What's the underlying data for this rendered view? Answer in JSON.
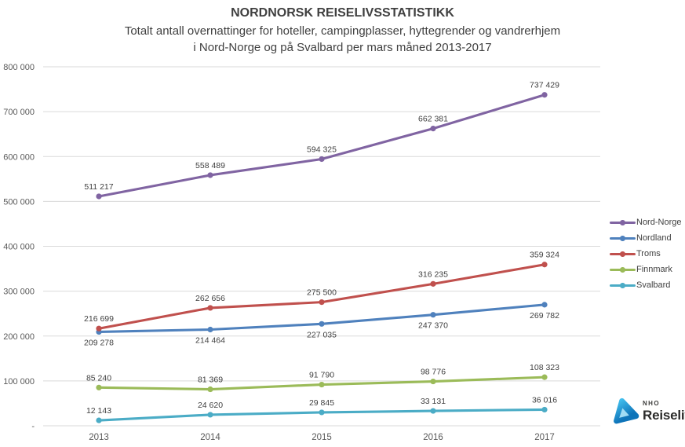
{
  "header": {
    "title": "NORDNORSK REISELIVSSTATISTIKK",
    "subtitle_line1": "Totalt antall overnattinger for hoteller, campingplasser, hyttegrender og vandrerhjem",
    "subtitle_line2": "i Nord-Norge og på Svalbard per mars måned 2013-2017"
  },
  "chart_data": {
    "type": "line",
    "title": "NORDNORSK REISELIVSSTATISTIKK",
    "subtitle": "Totalt antall overnattinger for hoteller, campingplasser, hyttegrender og vandrerhjem i Nord-Norge og på Svalbard per mars måned 2013-2017",
    "categories": [
      "2013",
      "2014",
      "2015",
      "2016",
      "2017"
    ],
    "series": [
      {
        "name": "Nord-Norge",
        "color": "#8064A2",
        "label_position": "above",
        "values": [
          511217,
          558489,
          594325,
          662381,
          737429
        ]
      },
      {
        "name": "Nordland",
        "color": "#4F81BD",
        "label_position": "below",
        "values": [
          209278,
          214464,
          227035,
          247370,
          269782
        ]
      },
      {
        "name": "Troms",
        "color": "#C0504D",
        "label_position": "above",
        "values": [
          216699,
          262656,
          275500,
          316235,
          359324
        ]
      },
      {
        "name": "Finnmark",
        "color": "#9BBB59",
        "label_position": "above",
        "values": [
          85240,
          81369,
          91790,
          98776,
          108323
        ]
      },
      {
        "name": "Svalbard",
        "color": "#4BACC6",
        "label_position": "above",
        "values": [
          12143,
          24620,
          29845,
          33131,
          36016
        ]
      }
    ],
    "xlabel": "",
    "ylabel": "",
    "ylim": [
      0,
      800000
    ],
    "ytick_step": 100000,
    "ytick_labels": [
      "-",
      "100 000",
      "200 000",
      "300 000",
      "400 000",
      "500 000",
      "600 000",
      "700 000",
      "800 000"
    ],
    "zero_tick_label": "-",
    "grid": true,
    "legend_position": "right",
    "gridline_color": "#D9D9D9",
    "axis_label_color": "#595959",
    "data_label_color": "#404040"
  },
  "logo": {
    "brand_top": "NHO",
    "brand_bottom": "Reiseliv"
  }
}
